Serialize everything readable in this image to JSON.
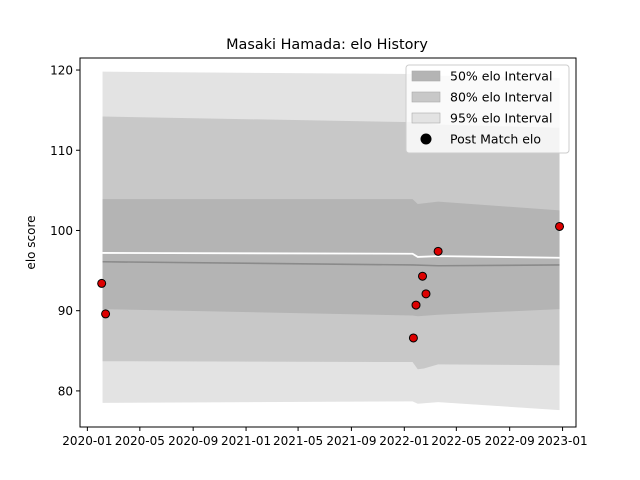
{
  "chart_data": {
    "type": "area",
    "title": "Masaki Hamada: elo History",
    "xlabel": "",
    "ylabel": "elo score",
    "xlim": [
      "2019-12-15",
      "2023-02-01"
    ],
    "ylim": [
      75.5,
      121.5
    ],
    "x_ticks": [
      "2020-01",
      "2020-05",
      "2020-09",
      "2021-01",
      "2021-05",
      "2021-09",
      "2022-01",
      "2022-05",
      "2022-09",
      "2023-01"
    ],
    "y_ticks": [
      80,
      90,
      100,
      110,
      120
    ],
    "legend_position": "top-right",
    "grid": false,
    "bands": [
      {
        "name": "95% elo Interval",
        "color": "#e3e3e3",
        "points": [
          {
            "x": "2020-02-05",
            "lower": 78.5,
            "upper": 119.8
          },
          {
            "x": "2022-01-20",
            "lower": 78.7,
            "upper": 119.5
          },
          {
            "x": "2022-02-01",
            "lower": 78.4,
            "upper": 119.4
          },
          {
            "x": "2022-03-20",
            "lower": 78.6,
            "upper": 119.3
          },
          {
            "x": "2022-12-25",
            "lower": 77.6,
            "upper": 119.0
          }
        ]
      },
      {
        "name": "80% elo Interval",
        "color": "#c8c8c8",
        "points": [
          {
            "x": "2020-02-05",
            "lower": 83.7,
            "upper": 114.2
          },
          {
            "x": "2022-01-20",
            "lower": 83.6,
            "upper": 113.5
          },
          {
            "x": "2022-02-01",
            "lower": 82.7,
            "upper": 113.3
          },
          {
            "x": "2022-02-15",
            "lower": 82.8,
            "upper": 113.4
          },
          {
            "x": "2022-03-20",
            "lower": 83.3,
            "upper": 113.2
          },
          {
            "x": "2022-12-25",
            "lower": 83.2,
            "upper": 112.8
          }
        ]
      },
      {
        "name": "50% elo Interval",
        "color": "#b4b4b4",
        "points": [
          {
            "x": "2020-02-05",
            "lower": 90.2,
            "upper": 103.9
          },
          {
            "x": "2022-01-20",
            "lower": 89.4,
            "upper": 103.9
          },
          {
            "x": "2022-02-01",
            "lower": 89.3,
            "upper": 103.3
          },
          {
            "x": "2022-03-20",
            "lower": 89.5,
            "upper": 103.6
          },
          {
            "x": "2022-12-25",
            "lower": 90.2,
            "upper": 102.5
          }
        ]
      }
    ],
    "mean_line": {
      "color": "#8a8a8a",
      "points": [
        {
          "x": "2020-02-05",
          "y": 96.1
        },
        {
          "x": "2022-01-20",
          "y": 95.7
        },
        {
          "x": "2022-03-20",
          "y": 95.6
        },
        {
          "x": "2022-12-25",
          "y": 95.7
        }
      ]
    },
    "median_line": {
      "color": "#ffffff",
      "points": [
        {
          "x": "2020-02-05",
          "y": 97.2
        },
        {
          "x": "2022-01-20",
          "y": 97.1
        },
        {
          "x": "2022-02-01",
          "y": 96.7
        },
        {
          "x": "2022-03-20",
          "y": 96.8
        },
        {
          "x": "2022-12-25",
          "y": 96.6
        }
      ]
    },
    "post_match_elo": {
      "name": "Post Match elo",
      "color": "#dd0000",
      "points": [
        {
          "x": "2020-02-03",
          "y": 93.4
        },
        {
          "x": "2020-02-12",
          "y": 89.6
        },
        {
          "x": "2022-01-22",
          "y": 86.6
        },
        {
          "x": "2022-01-28",
          "y": 90.7
        },
        {
          "x": "2022-02-12",
          "y": 94.3
        },
        {
          "x": "2022-02-20",
          "y": 92.1
        },
        {
          "x": "2022-03-20",
          "y": 97.4
        },
        {
          "x": "2022-12-25",
          "y": 100.5
        }
      ]
    },
    "legend": [
      {
        "label": "50% elo Interval",
        "kind": "patch",
        "color": "#b4b4b4"
      },
      {
        "label": "80% elo Interval",
        "kind": "patch",
        "color": "#c8c8c8"
      },
      {
        "label": "95% elo Interval",
        "kind": "patch",
        "color": "#e3e3e3"
      },
      {
        "label": "Post Match elo",
        "kind": "marker",
        "color": "#000000"
      }
    ]
  }
}
